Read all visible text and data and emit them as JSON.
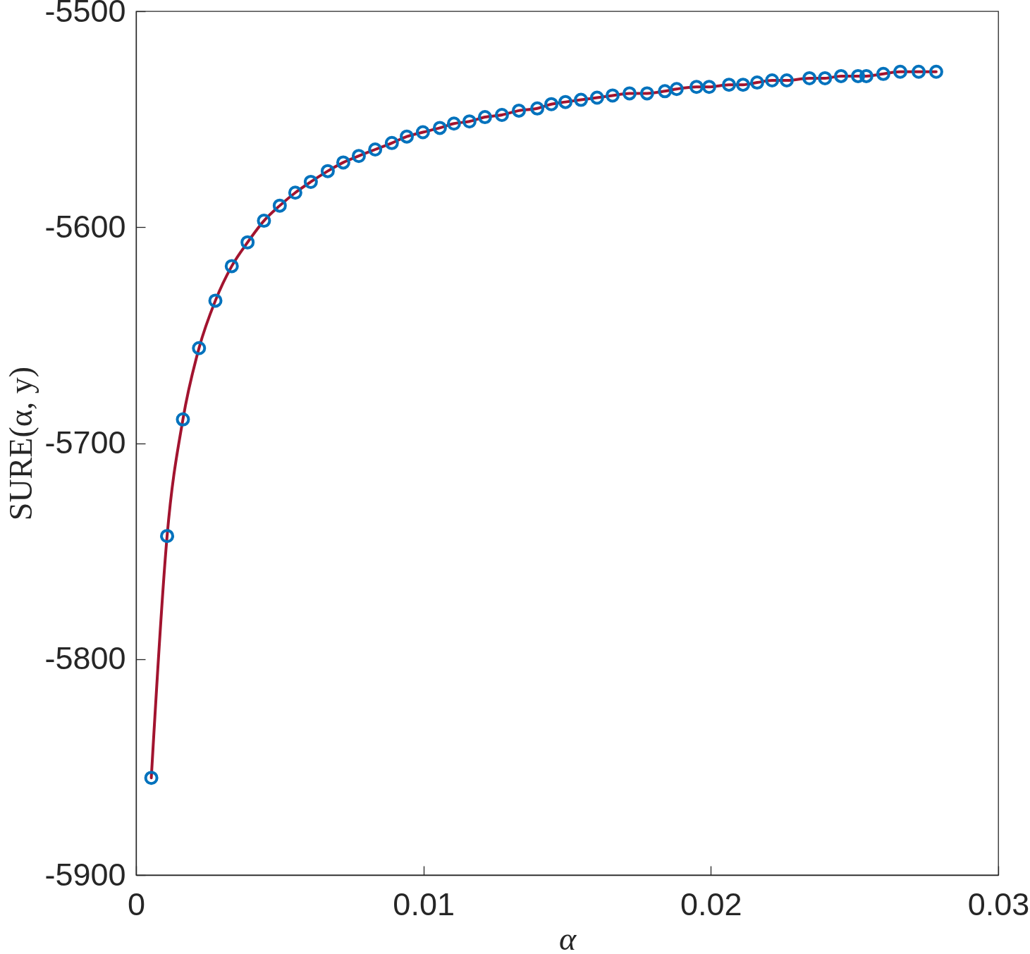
{
  "chart_data": {
    "type": "line",
    "xlabel": "α",
    "ylabel": "SURE(α, y)",
    "x": [
      0.00053,
      0.00108,
      0.00163,
      0.00219,
      0.00276,
      0.00333,
      0.00388,
      0.00445,
      0.005,
      0.00554,
      0.00608,
      0.00667,
      0.00721,
      0.00775,
      0.00832,
      0.0089,
      0.00942,
      0.00998,
      0.01057,
      0.01106,
      0.0116,
      0.01214,
      0.01273,
      0.01332,
      0.01396,
      0.01445,
      0.01494,
      0.01548,
      0.01604,
      0.01658,
      0.01717,
      0.01778,
      0.0184,
      0.01881,
      0.0195,
      0.01994,
      0.02063,
      0.02112,
      0.02161,
      0.02213,
      0.02264,
      0.02343,
      0.02397,
      0.02453,
      0.02512,
      0.02541,
      0.026,
      0.02659,
      0.02723,
      0.02784
    ],
    "series": [
      {
        "color": "#a2142f",
        "values": [
          -5855,
          -5743,
          -5689,
          -5656,
          -5634,
          -5618,
          -5607,
          -5597,
          -5590,
          -5584,
          -5579,
          -5574,
          -5570,
          -5567,
          -5564,
          -5561,
          -5558,
          -5556,
          -5554,
          -5552,
          -5551,
          -5549,
          -5548,
          -5546,
          -5545,
          -5543,
          -5542,
          -5541,
          -5540,
          -5539,
          -5538,
          -5538,
          -5537,
          -5536,
          -5535,
          -5535,
          -5534,
          -5534,
          -5533,
          -5532,
          -5532,
          -5531,
          -5531,
          -5530,
          -5530,
          -5530,
          -5529,
          -5528,
          -5528,
          -5528
        ]
      },
      {
        "type": "scatter",
        "color": "#0072bd",
        "marker": "circle",
        "values": [
          -5855,
          -5743,
          -5689,
          -5656,
          -5634,
          -5618,
          -5607,
          -5597,
          -5590,
          -5584,
          -5579,
          -5574,
          -5570,
          -5567,
          -5564,
          -5561,
          -5558,
          -5556,
          -5554,
          -5552,
          -5551,
          -5549,
          -5548,
          -5546,
          -5545,
          -5543,
          -5542,
          -5541,
          -5540,
          -5539,
          -5538,
          -5538,
          -5537,
          -5536,
          -5535,
          -5535,
          -5534,
          -5534,
          -5533,
          -5532,
          -5532,
          -5531,
          -5531,
          -5530,
          -5530,
          -5530,
          -5529,
          -5528,
          -5528,
          -5528
        ]
      }
    ],
    "xlim": [
      0,
      0.03
    ],
    "ylim": [
      -5900,
      -5500
    ],
    "xticks": [
      0,
      0.01,
      0.02,
      0.03
    ],
    "yticks": [
      -5900,
      -5800,
      -5700,
      -5600,
      -5500
    ],
    "grid": false,
    "line_style": "solid"
  }
}
